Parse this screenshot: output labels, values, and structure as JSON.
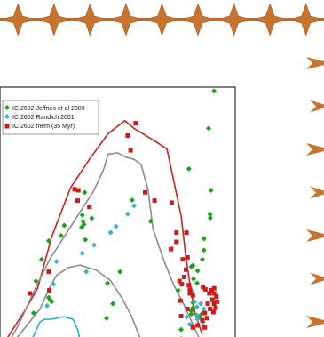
{
  "decor": {
    "accent_color": "#c8742e",
    "top_star_count": 9,
    "side_arrow_count": 7
  },
  "chart_data": {
    "type": "scatter",
    "title": "",
    "xlabel": "",
    "ylabel": "",
    "xlim": [
      0,
      100
    ],
    "ylim": [
      0,
      100
    ],
    "legend_position": "top-left",
    "series": [
      {
        "name": "IC 2602 Jeffries et al 2009",
        "marker": "diamond",
        "color": "#1aa31a",
        "points": [
          [
            91.0,
            98.5
          ],
          [
            88.7,
            84.0
          ],
          [
            80.3,
            68.3
          ],
          [
            89.7,
            60.0
          ],
          [
            89.3,
            50.7
          ],
          [
            89.4,
            49.3
          ],
          [
            86.7,
            41.2
          ],
          [
            86.7,
            36.8
          ],
          [
            86.0,
            33.2
          ],
          [
            82.0,
            30.8
          ],
          [
            81.3,
            30.4
          ],
          [
            84.0,
            28.8
          ],
          [
            82.3,
            25.6
          ],
          [
            83.8,
            24.0
          ],
          [
            80.7,
            22.4
          ],
          [
            82.0,
            16.4
          ],
          [
            82.0,
            14.4
          ],
          [
            81.3,
            13.2
          ],
          [
            81.3,
            12.0
          ],
          [
            85.7,
            12.0
          ],
          [
            84.7,
            10.8
          ],
          [
            75.7,
            21.2
          ],
          [
            77.0,
            6.0
          ],
          [
            64.0,
            48.0
          ],
          [
            56.2,
            56.2
          ],
          [
            51.0,
            28.4
          ],
          [
            48.0,
            16.0
          ],
          [
            45.3,
            10.4
          ],
          [
            45.7,
            24.0
          ],
          [
            36.0,
            59.2
          ],
          [
            36.3,
            40.8
          ],
          [
            39.0,
            49.2
          ],
          [
            35.0,
            50.4
          ],
          [
            35.3,
            48.0
          ],
          [
            35.7,
            46.8
          ],
          [
            34.7,
            45.6
          ],
          [
            27.3,
            46.4
          ],
          [
            26.0,
            42.4
          ],
          [
            20.7,
            40.4
          ],
          [
            17.7,
            33.2
          ],
          [
            15.3,
            24.8
          ],
          [
            20.7,
            18.4
          ],
          [
            21.3,
            17.6
          ],
          [
            22.0,
            16.8
          ],
          [
            14.3,
            12.4
          ],
          [
            77.0,
            2.4
          ]
        ]
      },
      {
        "name": "IC 2602 Randich 2001",
        "marker": "diamond",
        "color": "#3cb4c8",
        "points": [
          [
            57.0,
            54.0
          ],
          [
            54.3,
            50.8
          ],
          [
            49.3,
            46.0
          ],
          [
            47.0,
            43.6
          ],
          [
            40.0,
            38.8
          ],
          [
            35.0,
            35.6
          ],
          [
            36.7,
            28.4
          ],
          [
            24.0,
            32.4
          ],
          [
            22.7,
            23.6
          ],
          [
            20.0,
            15.2
          ],
          [
            81.7,
            20.8
          ],
          [
            82.7,
            16.8
          ],
          [
            85.3,
            16.0
          ],
          [
            83.7,
            14.8
          ],
          [
            86.7,
            14.0
          ],
          [
            83.7,
            11.6
          ],
          [
            84.0,
            10.0
          ],
          [
            86.3,
            8.8
          ],
          [
            80.7,
            8.0
          ],
          [
            79.3,
            10.8
          ],
          [
            71.3,
            2.0
          ]
        ]
      },
      {
        "name": "IC 2602 mem (35 Myr)",
        "marker": "square",
        "color": "#d41818",
        "points": [
          [
            57.7,
            86.0
          ],
          [
            54.3,
            81.2
          ],
          [
            55.5,
            75.5
          ],
          [
            33.3,
            60.0
          ],
          [
            31.7,
            60.4
          ],
          [
            33.0,
            56.0
          ],
          [
            61.7,
            59.2
          ],
          [
            65.7,
            56.0
          ],
          [
            73.0,
            55.2
          ],
          [
            75.0,
            43.6
          ],
          [
            75.0,
            40.0
          ],
          [
            72.7,
            37.2
          ],
          [
            79.7,
            34.0
          ],
          [
            77.7,
            33.2
          ],
          [
            79.0,
            29.2
          ],
          [
            78.3,
            26.4
          ],
          [
            76.3,
            24.8
          ],
          [
            77.3,
            23.6
          ],
          [
            80.3,
            23.2
          ],
          [
            80.7,
            21.2
          ],
          [
            80.7,
            20.0
          ],
          [
            82.0,
            19.2
          ],
          [
            86.3,
            22.4
          ],
          [
            87.3,
            21.6
          ],
          [
            89.0,
            20.0
          ],
          [
            90.0,
            21.2
          ],
          [
            91.0,
            20.0
          ],
          [
            92.0,
            18.8
          ],
          [
            91.0,
            22.0
          ],
          [
            90.3,
            17.6
          ],
          [
            91.0,
            16.0
          ],
          [
            91.7,
            14.4
          ],
          [
            92.3,
            16.8
          ],
          [
            88.3,
            16.0
          ],
          [
            89.3,
            14.0
          ],
          [
            90.7,
            12.8
          ],
          [
            87.0,
            12.4
          ],
          [
            88.0,
            10.4
          ],
          [
            86.0,
            9.6
          ],
          [
            84.0,
            7.6
          ],
          [
            87.0,
            6.8
          ],
          [
            82.0,
            6.8
          ],
          [
            77.0,
            11.2
          ],
          [
            79.7,
            14.0
          ],
          [
            76.7,
            17.2
          ],
          [
            38.0,
            53.6
          ],
          [
            20.7,
            28.4
          ],
          [
            21.0,
            21.2
          ],
          [
            12.7,
            20.0
          ],
          [
            79.3,
            43.6
          ]
        ]
      }
    ],
    "curves": [
      {
        "color": "#cc2020",
        "width": 1.6,
        "points": [
          [
            0,
            -2
          ],
          [
            4,
            4
          ],
          [
            11,
            14
          ],
          [
            16,
            22
          ],
          [
            22,
            42
          ],
          [
            30,
            61
          ],
          [
            38,
            72
          ],
          [
            46,
            82
          ],
          [
            53,
            87
          ],
          [
            57,
            84
          ],
          [
            66,
            79
          ],
          [
            71,
            76
          ],
          [
            77,
            50
          ],
          [
            79,
            34
          ],
          [
            81,
            22
          ],
          [
            83,
            12
          ],
          [
            86,
            4
          ]
        ]
      },
      {
        "color": "#8c8c8c",
        "width": 1.6,
        "points": [
          [
            2,
            -2
          ],
          [
            8,
            8
          ],
          [
            15,
            22
          ],
          [
            21,
            33
          ],
          [
            28,
            43
          ],
          [
            35,
            53
          ],
          [
            40,
            60
          ],
          [
            44,
            68
          ],
          [
            46,
            74
          ],
          [
            50,
            74.5
          ],
          [
            53,
            73
          ],
          [
            57,
            72
          ],
          [
            60,
            70
          ],
          [
            63,
            60
          ],
          [
            65,
            45
          ],
          [
            70,
            32
          ],
          [
            74,
            23
          ],
          [
            78,
            16
          ],
          [
            82,
            8
          ],
          [
            85,
            2
          ]
        ]
      },
      {
        "color": "#8c8c8c",
        "width": 1.6,
        "points": [
          [
            3,
            -2
          ],
          [
            10,
            6
          ],
          [
            17,
            14
          ],
          [
            21,
            22
          ],
          [
            24,
            27
          ],
          [
            29,
            30
          ],
          [
            34,
            31
          ],
          [
            41,
            29
          ],
          [
            47,
            25
          ],
          [
            52,
            18
          ],
          [
            56,
            11
          ],
          [
            59,
            4
          ],
          [
            62,
            -2
          ]
        ]
      },
      {
        "color": "#22b4c4",
        "width": 1.6,
        "points": [
          [
            11,
            -2
          ],
          [
            14,
            3
          ],
          [
            17,
            9
          ],
          [
            19,
            10
          ],
          [
            22,
            10
          ],
          [
            27,
            11
          ],
          [
            31,
            10
          ],
          [
            33,
            6
          ],
          [
            34,
            2
          ],
          [
            35,
            -2
          ]
        ]
      }
    ]
  }
}
